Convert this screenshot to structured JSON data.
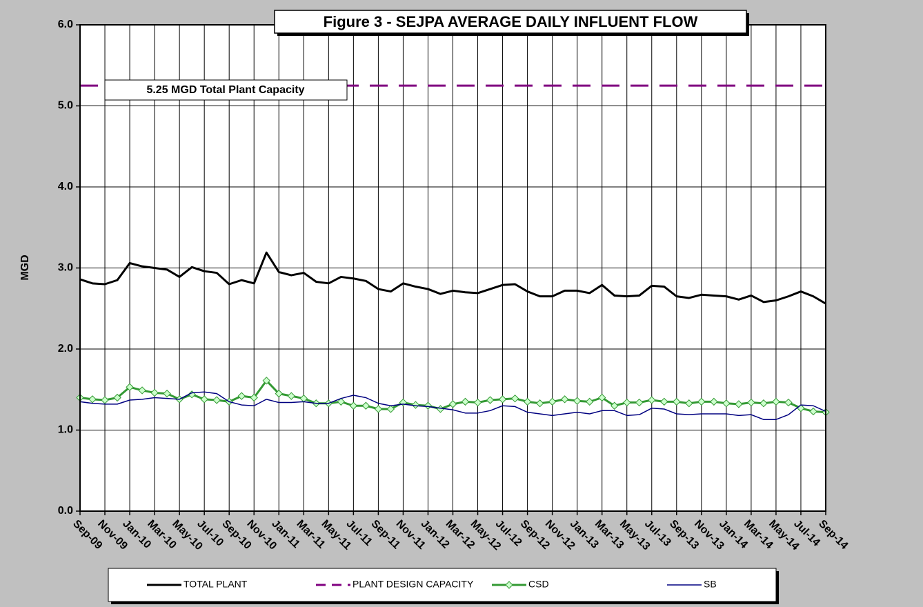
{
  "chart_data": {
    "type": "line",
    "title": "Figure 3 - SEJPA AVERAGE DAILY INFLUENT FLOW",
    "y_label": "MGD",
    "annotations": [
      {
        "text": "5.25 MGD Total Plant Capacity"
      }
    ],
    "categories": [
      "Sep-09",
      null,
      "Nov-09",
      null,
      "Jan-10",
      null,
      "Mar-10",
      null,
      "May-10",
      null,
      "Jul-10",
      null,
      "Sep-10",
      null,
      "Nov-10",
      null,
      "Jan-11",
      null,
      "Mar-11",
      null,
      "May-11",
      null,
      "Jul-11",
      null,
      "Sep-11",
      null,
      "Nov-11",
      null,
      "Jan-12",
      null,
      "Mar-12",
      null,
      "May-12",
      null,
      "Jul-12",
      null,
      "Sep-12",
      null,
      "Nov-12",
      null,
      "Jan-13",
      null,
      "Mar-13",
      null,
      "May-13",
      null,
      "Jul-13",
      null,
      "Sep-13",
      null,
      "Nov-13",
      null,
      "Jan-14",
      null,
      "Mar-14",
      null,
      "May-14",
      null,
      "Jul-14",
      null,
      "Sep-14"
    ],
    "ylim": [
      0,
      6
    ],
    "yticks": [
      {
        "value": 0,
        "label": "0.0"
      },
      {
        "value": 1,
        "label": "1.0"
      },
      {
        "value": 2,
        "label": "2.0"
      },
      {
        "value": 3,
        "label": "3.0"
      },
      {
        "value": 4,
        "label": "4.0"
      },
      {
        "value": 5,
        "label": "5.0"
      },
      {
        "value": 6,
        "label": "6.0"
      }
    ],
    "grid": true,
    "legend": "bottom",
    "series": [
      {
        "name": "TOTAL PLANT",
        "color": "#000000",
        "width": 3,
        "dashed": false,
        "marker": null,
        "values": [
          2.86,
          2.81,
          2.8,
          2.85,
          3.06,
          3.02,
          3.0,
          2.98,
          2.89,
          3.01,
          2.96,
          2.94,
          2.8,
          2.85,
          2.81,
          3.19,
          2.95,
          2.91,
          2.94,
          2.83,
          2.81,
          2.89,
          2.87,
          2.84,
          2.74,
          2.71,
          2.81,
          2.77,
          2.74,
          2.68,
          2.72,
          2.7,
          2.69,
          2.74,
          2.79,
          2.8,
          2.71,
          2.65,
          2.65,
          2.72,
          2.72,
          2.69,
          2.79,
          2.66,
          2.65,
          2.66,
          2.78,
          2.77,
          2.65,
          2.63,
          2.67,
          2.66,
          2.65,
          2.61,
          2.66,
          2.58,
          2.6,
          2.65,
          2.71,
          2.65,
          2.56
        ]
      },
      {
        "name": "PLANT DESIGN CAPACITY",
        "color": "#800080",
        "width": 3,
        "dashed": true,
        "marker": null,
        "values": [
          5.25,
          5.25,
          5.25,
          5.25,
          5.25,
          5.25,
          5.25,
          5.25,
          5.25,
          5.25,
          5.25,
          5.25,
          5.25,
          5.25,
          5.25,
          5.25,
          5.25,
          5.25,
          5.25,
          5.25,
          5.25,
          5.25,
          5.25,
          5.25,
          5.25,
          5.25,
          5.25,
          5.25,
          5.25,
          5.25,
          5.25,
          5.25,
          5.25,
          5.25,
          5.25,
          5.25,
          5.25,
          5.25,
          5.25,
          5.25,
          5.25,
          5.25,
          5.25,
          5.25,
          5.25,
          5.25,
          5.25,
          5.25,
          5.25,
          5.25,
          5.25,
          5.25,
          5.25,
          5.25,
          5.25,
          5.25,
          5.25,
          5.25,
          5.25,
          5.25,
          5.25
        ]
      },
      {
        "name": "CSD",
        "color": "#339933",
        "width": 3,
        "dashed": false,
        "marker": "diamond",
        "marker_fill": "#ccffcc",
        "values": [
          1.4,
          1.38,
          1.37,
          1.4,
          1.53,
          1.49,
          1.46,
          1.45,
          1.38,
          1.44,
          1.38,
          1.37,
          1.35,
          1.42,
          1.4,
          1.61,
          1.45,
          1.42,
          1.39,
          1.33,
          1.33,
          1.35,
          1.3,
          1.3,
          1.26,
          1.26,
          1.34,
          1.31,
          1.3,
          1.26,
          1.32,
          1.35,
          1.34,
          1.37,
          1.38,
          1.39,
          1.35,
          1.33,
          1.35,
          1.38,
          1.36,
          1.35,
          1.4,
          1.3,
          1.34,
          1.34,
          1.37,
          1.35,
          1.35,
          1.33,
          1.35,
          1.35,
          1.33,
          1.32,
          1.34,
          1.33,
          1.35,
          1.34,
          1.27,
          1.23,
          1.22
        ]
      },
      {
        "name": "SB",
        "color": "#000080",
        "width": 1.5,
        "dashed": false,
        "marker": null,
        "values": [
          1.35,
          1.33,
          1.32,
          1.32,
          1.37,
          1.38,
          1.4,
          1.39,
          1.38,
          1.46,
          1.47,
          1.45,
          1.35,
          1.31,
          1.3,
          1.38,
          1.34,
          1.34,
          1.35,
          1.33,
          1.33,
          1.39,
          1.43,
          1.4,
          1.33,
          1.3,
          1.32,
          1.3,
          1.29,
          1.27,
          1.25,
          1.21,
          1.21,
          1.24,
          1.3,
          1.29,
          1.22,
          1.2,
          1.18,
          1.2,
          1.22,
          1.2,
          1.24,
          1.24,
          1.18,
          1.19,
          1.27,
          1.26,
          1.2,
          1.19,
          1.2,
          1.2,
          1.2,
          1.18,
          1.19,
          1.13,
          1.13,
          1.19,
          1.31,
          1.3,
          1.23
        ]
      }
    ]
  }
}
